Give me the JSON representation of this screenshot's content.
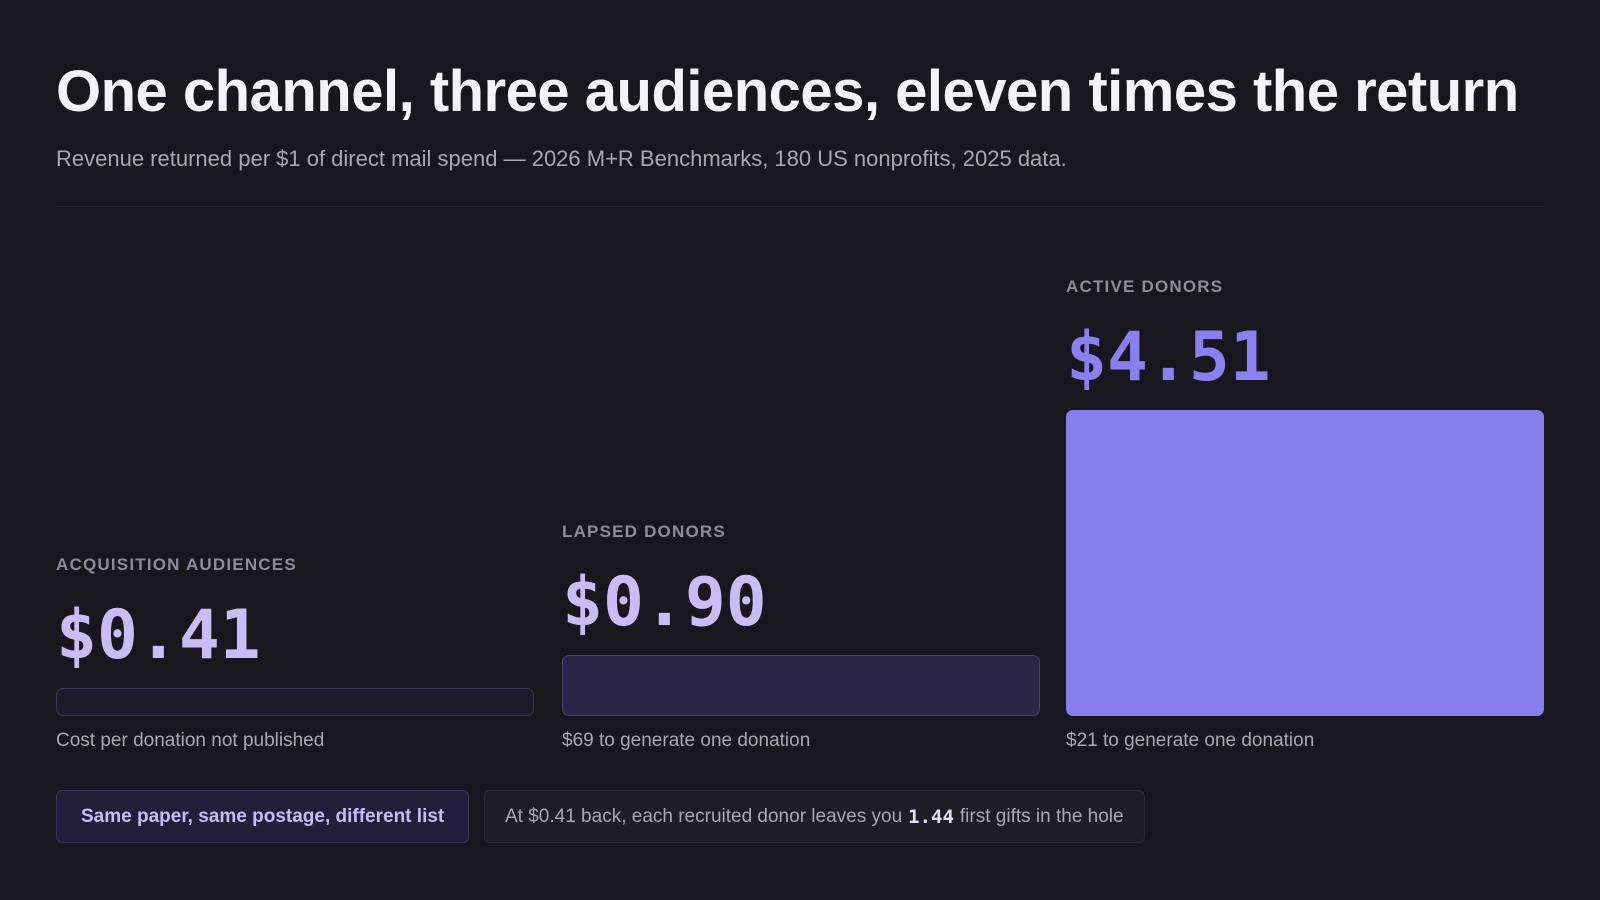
{
  "header": {
    "title": "One channel, three audiences, eleven times the return",
    "subtitle": "Revenue returned per $1 of direct mail spend — 2026 M+R Benchmarks, 180 US nonprofits, 2025 data."
  },
  "chart_data": {
    "type": "bar",
    "title": "One channel, three audiences, eleven times the return",
    "subtitle": "Revenue returned per $1 of direct mail spend — 2026 M+R Benchmarks, 180 US nonprofits, 2025 data.",
    "categories": [
      "ACQUISITION AUDIENCES",
      "LAPSED DONORS",
      "ACTIVE DONORS"
    ],
    "values": [
      0.41,
      0.9,
      4.51
    ],
    "value_labels": [
      "$0.41",
      "$0.90",
      "$4.51"
    ],
    "captions": [
      "Cost per donation not published",
      "$69 to generate one donation",
      "$21 to generate one donation"
    ],
    "colors": {
      "bar_fills": [
        "#1e1c2c",
        "#2b2546",
        "#887ef0"
      ],
      "bar_borders": [
        "#3b3655",
        "#4a4270",
        "#887ef0"
      ],
      "value_colors": [
        "#c8bdf8",
        "#c8bdf8",
        "#8b80f1"
      ]
    },
    "xlabel": "",
    "ylabel": "",
    "ylim": [
      0,
      4.51
    ],
    "grid": false
  },
  "footer": {
    "chip_label": "Same paper, same postage, different list",
    "note_prefix": "At $0.41 back, each recruited donor leaves you",
    "note_value": "1.44",
    "note_suffix": "first gifts in the hole"
  }
}
